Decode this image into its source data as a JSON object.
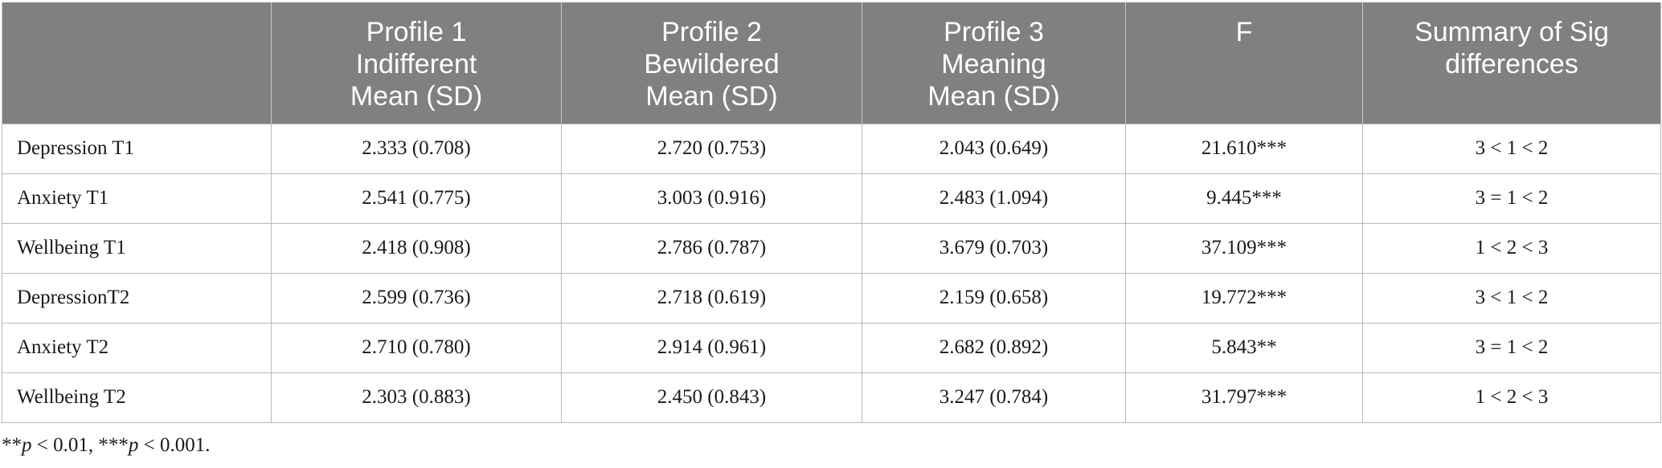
{
  "table": {
    "headers": [
      [
        ""
      ],
      [
        "Profile 1",
        "Indifferent",
        "Mean (SD)"
      ],
      [
        "Profile 2",
        "Bewildered",
        "Mean (SD)"
      ],
      [
        "Profile 3",
        "Meaning",
        "Mean (SD)"
      ],
      [
        "F"
      ],
      [
        "Summary of Sig",
        "differences"
      ]
    ],
    "rows": [
      [
        "Depression T1",
        "2.333 (0.708)",
        "2.720 (0.753)",
        "2.043 (0.649)",
        "21.610***",
        "3 < 1 < 2"
      ],
      [
        "Anxiety T1",
        "2.541 (0.775)",
        "3.003 (0.916)",
        "2.483 (1.094)",
        "9.445***",
        "3 = 1 < 2"
      ],
      [
        "Wellbeing T1",
        "2.418 (0.908)",
        "2.786 (0.787)",
        "3.679 (0.703)",
        "37.109***",
        "1 < 2 < 3"
      ],
      [
        "DepressionT2",
        "2.599 (0.736)",
        "2.718 (0.619)",
        "2.159 (0.658)",
        "19.772***",
        "3 < 1 < 2"
      ],
      [
        "Anxiety T2",
        "2.710 (0.780)",
        "2.914 (0.961)",
        "2.682 (0.892)",
        "5.843**",
        "3 = 1 < 2"
      ],
      [
        "Wellbeing T2",
        "2.303 (0.883)",
        "2.450 (0.843)",
        "3.247 (0.784)",
        "31.797***",
        "1 < 2 < 3"
      ]
    ]
  },
  "footnote": {
    "stars2": "**",
    "p1": "p",
    "text1": " < 0.01, ",
    "stars3": "***",
    "p2": "p",
    "text2": " < 0.001."
  }
}
